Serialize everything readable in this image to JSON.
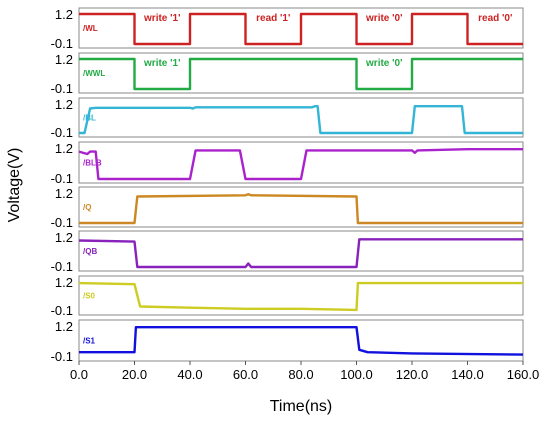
{
  "chart_data": {
    "type": "line",
    "xlabel": "Time(ns)",
    "ylabel": "Voltage(V)",
    "xlim": [
      0,
      160
    ],
    "ylim": [
      -0.1,
      1.2
    ],
    "x_ticks": [
      "0.0",
      "20.0",
      "40.0",
      "60.0",
      "80.0",
      "100.0",
      "120.0",
      "140.0",
      "160.0"
    ],
    "y_ticks": [
      "1.2",
      "-0.1"
    ],
    "grid": false,
    "series": [
      {
        "name": "/WL",
        "color": "#cc2222",
        "x": [
          0,
          20,
          20,
          40,
          40,
          60,
          60,
          80,
          80,
          100,
          100,
          120,
          120,
          140,
          140,
          160
        ],
        "y": [
          1.2,
          1.2,
          -0.1,
          -0.1,
          1.2,
          1.2,
          -0.1,
          -0.1,
          1.2,
          1.2,
          -0.1,
          -0.1,
          1.2,
          1.2,
          -0.1,
          -0.1
        ]
      },
      {
        "name": "/WWL",
        "color": "#22aa44",
        "x": [
          0,
          20,
          20,
          40,
          40,
          100,
          100,
          120,
          120,
          160
        ],
        "y": [
          1.2,
          1.2,
          -0.1,
          -0.1,
          1.2,
          1.2,
          -0.1,
          -0.1,
          1.2,
          1.2
        ]
      },
      {
        "name": "/BL",
        "color": "#33b5d6",
        "x": [
          0,
          2,
          4,
          6,
          40,
          41,
          42,
          84,
          85,
          86,
          87,
          120,
          121,
          122,
          138,
          139,
          140,
          160
        ],
        "y": [
          -0.1,
          -0.1,
          1.0,
          1.03,
          1.03,
          1.0,
          1.05,
          1.05,
          1.1,
          1.1,
          -0.1,
          -0.1,
          1.1,
          1.1,
          1.1,
          -0.1,
          -0.1,
          -0.1
        ]
      },
      {
        "name": "/BLB",
        "color": "#aa22cc",
        "x": [
          0,
          3,
          4,
          6,
          7,
          40,
          42,
          58,
          60,
          80,
          82,
          120,
          121,
          122,
          140,
          160
        ],
        "y": [
          1.05,
          0.95,
          1.05,
          1.05,
          -0.1,
          -0.1,
          1.1,
          1.1,
          -0.1,
          -0.1,
          1.1,
          1.1,
          1.0,
          1.1,
          1.15,
          1.15
        ]
      },
      {
        "name": "/Q",
        "color": "#cc8822",
        "x": [
          0,
          20,
          21,
          60,
          61,
          62,
          100,
          100.5,
          160
        ],
        "y": [
          -0.1,
          -0.1,
          1.05,
          1.1,
          1.15,
          1.1,
          1.05,
          -0.1,
          -0.1
        ]
      },
      {
        "name": "/QB",
        "color": "#8822bb",
        "x": [
          0,
          20,
          21,
          60,
          61,
          62,
          100,
          101,
          160
        ],
        "y": [
          1.05,
          1.0,
          -0.1,
          -0.1,
          0.05,
          -0.1,
          -0.1,
          1.1,
          1.1
        ]
      },
      {
        "name": "/S0",
        "color": "#cccc22",
        "x": [
          0,
          20,
          22,
          40,
          60,
          80,
          100,
          100.5,
          160
        ],
        "y": [
          1.15,
          1.1,
          0.1,
          0.05,
          0.0,
          0.0,
          -0.05,
          1.15,
          1.15
        ]
      },
      {
        "name": "/S1",
        "color": "#1111dd",
        "x": [
          0,
          20,
          20.5,
          100,
          101,
          104,
          120,
          160
        ],
        "y": [
          0.1,
          0.1,
          1.15,
          1.15,
          0.2,
          0.1,
          0.05,
          0.0
        ]
      }
    ],
    "annotations": [
      {
        "text": "write '1'",
        "x": 30,
        "panel": 0
      },
      {
        "text": "read '1'",
        "x": 70,
        "panel": 0
      },
      {
        "text": "write '0'",
        "x": 110,
        "panel": 0
      },
      {
        "text": "read '0'",
        "x": 150,
        "panel": 0
      },
      {
        "text": "write '1'",
        "x": 30,
        "panel": 1
      },
      {
        "text": "write '0'",
        "x": 110,
        "panel": 1
      }
    ]
  }
}
